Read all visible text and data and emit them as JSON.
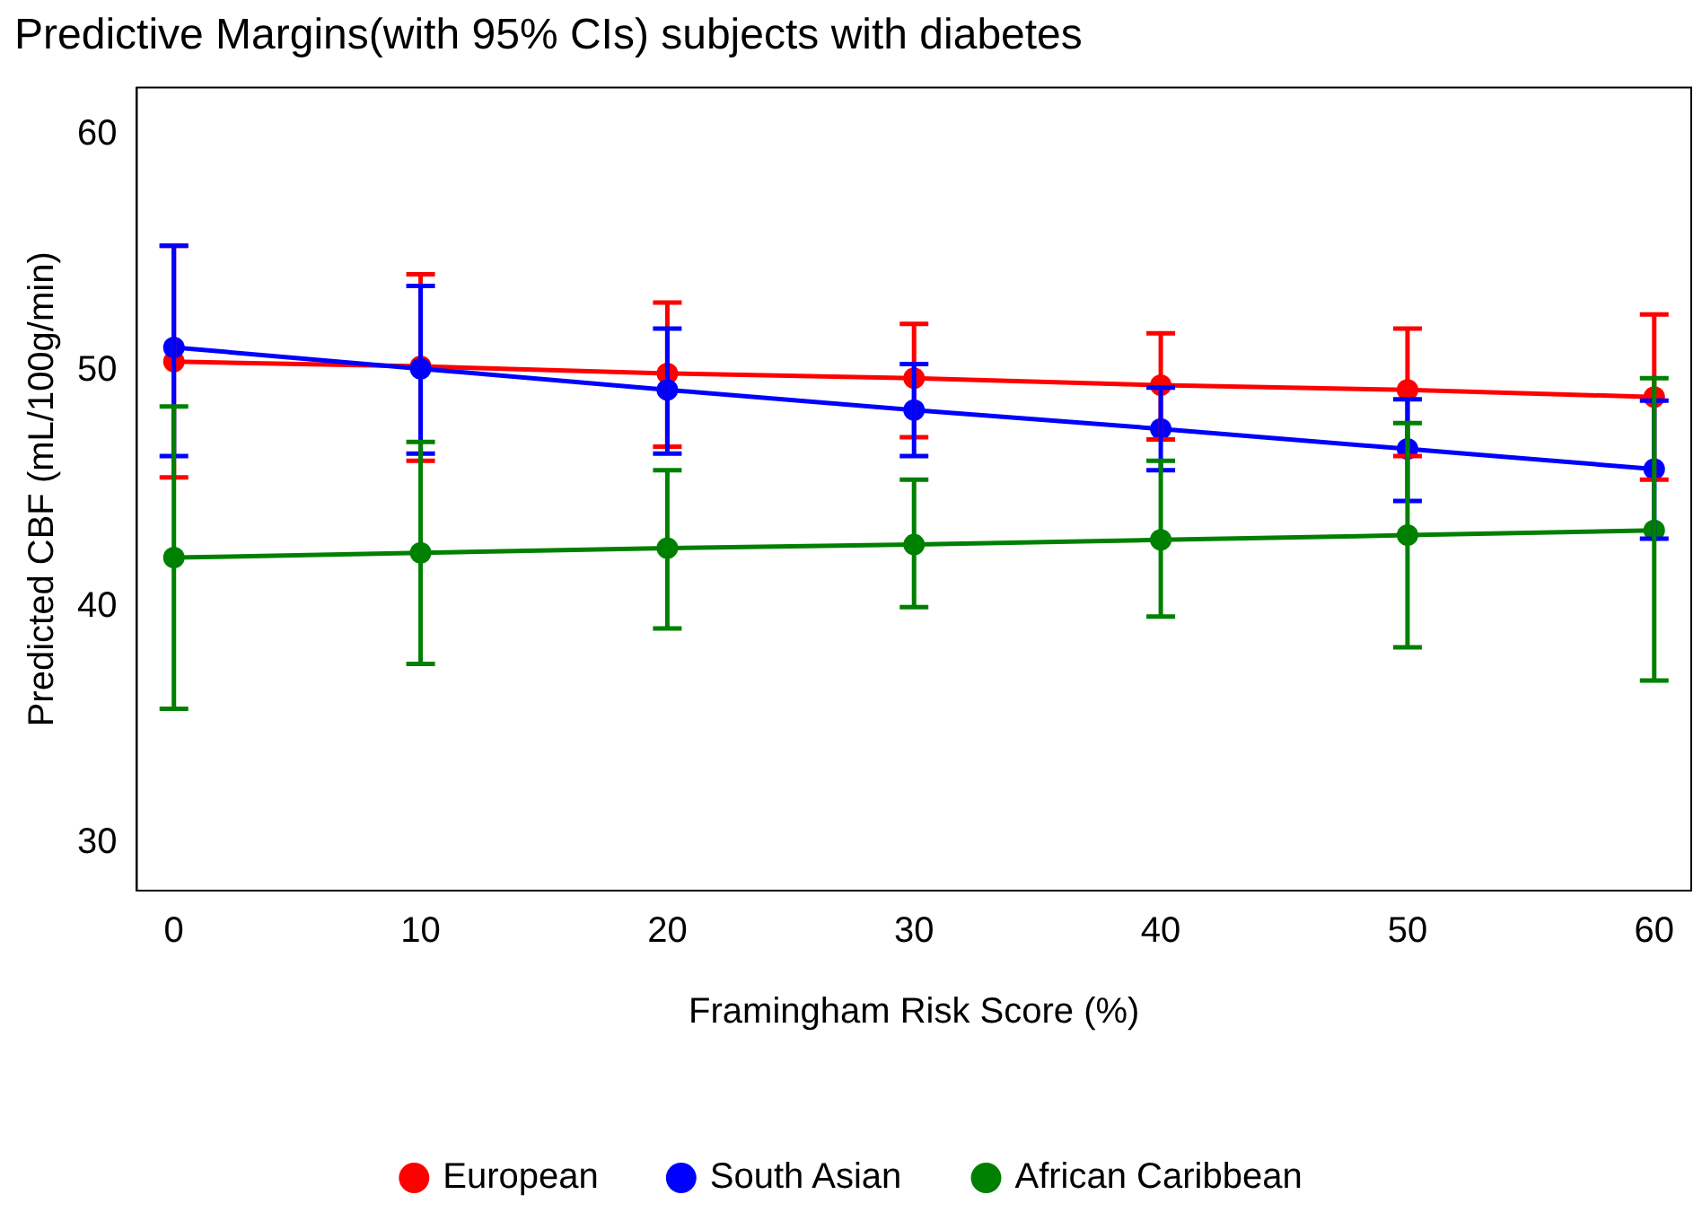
{
  "chart_data": {
    "type": "line",
    "title": "Predictive Margins(with 95% CIs) subjects with diabetes",
    "xlabel": "Framingham Risk Score (%)",
    "ylabel": "Predicted CBF (mL/100g/min)",
    "x": [
      0,
      10,
      20,
      30,
      40,
      50,
      60
    ],
    "xlim": [
      -1.5,
      61.5
    ],
    "xticks": [
      0,
      10,
      20,
      30,
      40,
      50,
      60
    ],
    "ylim": [
      28,
      62
    ],
    "yticks": [
      30,
      40,
      50,
      60
    ],
    "grid": false,
    "legend": "bottom",
    "marker": "circle",
    "line_style": "solid",
    "series": [
      {
        "name": "European",
        "color": "#ff0000",
        "values": [
          50.4,
          50.2,
          49.9,
          49.7,
          49.4,
          49.2,
          48.9
        ],
        "errors": [
          [
            45.5,
            55.3
          ],
          [
            46.2,
            54.1
          ],
          [
            46.8,
            52.9
          ],
          [
            47.2,
            52.0
          ],
          [
            47.1,
            51.6
          ],
          [
            46.4,
            51.8
          ],
          [
            45.4,
            52.4
          ]
        ]
      },
      {
        "name": "South Asian",
        "color": "#0000ff",
        "values": [
          51.0,
          50.1,
          49.2,
          48.35,
          47.55,
          46.7,
          45.85
        ],
        "errors": [
          [
            46.4,
            55.3
          ],
          [
            46.5,
            53.6
          ],
          [
            46.5,
            51.8
          ],
          [
            46.4,
            50.3
          ],
          [
            45.8,
            49.3
          ],
          [
            44.5,
            48.8
          ],
          [
            42.9,
            48.75
          ]
        ]
      },
      {
        "name": "African Caribbean",
        "color": "#008000",
        "values": [
          42.1,
          42.3,
          42.5,
          42.65,
          42.85,
          43.05,
          43.25
        ],
        "errors": [
          [
            35.7,
            48.5
          ],
          [
            37.6,
            47.0
          ],
          [
            39.1,
            45.8
          ],
          [
            40.0,
            45.4
          ],
          [
            39.6,
            46.2
          ],
          [
            38.3,
            47.8
          ],
          [
            36.9,
            49.7
          ]
        ]
      }
    ]
  }
}
